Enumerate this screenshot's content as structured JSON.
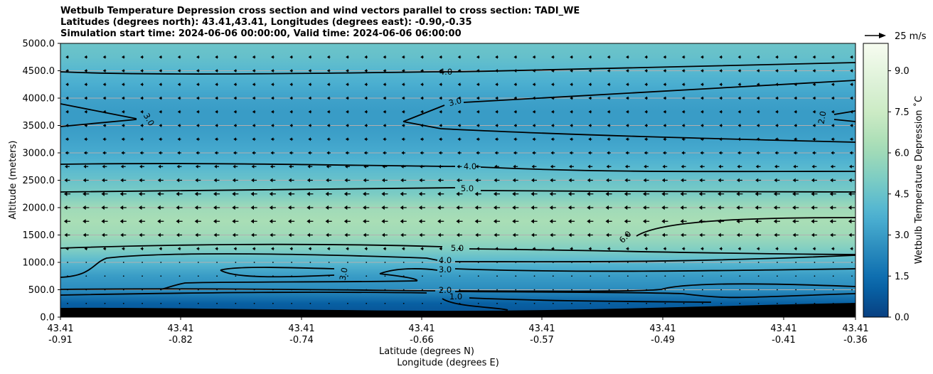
{
  "title_lines": [
    "Wetbulb Temperature Depression cross section and wind vectors parallel to cross section: TADI_WE",
    "Latitudes (degrees north): 43.41,43.41, Longitudes (degrees east): -0.90,-0.35",
    "Simulation start time: 2024-06-06 00:00:00, Valid time: 2024-06-06 06:00:00"
  ],
  "chart_data": {
    "type": "heatmap",
    "ylabel": "Altitude (meters)",
    "xlabel": "Latitude (degrees N)",
    "xlabel2": "Longitude (degrees E)",
    "ylim": [
      0,
      5000
    ],
    "y_ticks": [
      "0.0",
      "500.0",
      "1000.0",
      "1500.0",
      "2000.0",
      "2500.0",
      "3000.0",
      "3500.0",
      "4000.0",
      "4500.0",
      "5000.0"
    ],
    "x_ticks": [
      {
        "lat": "43.41",
        "lon": "-0.91"
      },
      {
        "lat": "43.41",
        "lon": "-0.82"
      },
      {
        "lat": "43.41",
        "lon": "-0.74"
      },
      {
        "lat": "43.41",
        "lon": "-0.66"
      },
      {
        "lat": "43.41",
        "lon": "-0.57"
      },
      {
        "lat": "43.41",
        "lon": "-0.49"
      },
      {
        "lat": "43.41",
        "lon": "-0.41"
      },
      {
        "lat": "43.41",
        "lon": "-0.36"
      }
    ],
    "grid": "horizontal",
    "colorbar": {
      "label": "Wetbulb Temperature Depression ˚C",
      "range": [
        0,
        10
      ],
      "ticks": [
        "0.0",
        "1.5",
        "3.0",
        "4.5",
        "6.0",
        "7.5",
        "9.0"
      ]
    },
    "quiver_key": "25 m/s",
    "contour_labels": [
      "4.0",
      "3.0",
      "3.0",
      "2.0",
      "4.0",
      "5.0",
      "5.0",
      "6.0",
      "4.0",
      "3.0",
      "3.0",
      "2.0",
      "1.0"
    ],
    "profile": [
      {
        "altitude": 0,
        "value": 0.5
      },
      {
        "altitude": 250,
        "value": 1.0
      },
      {
        "altitude": 500,
        "value": 2.5
      },
      {
        "altitude": 750,
        "value": 3.0
      },
      {
        "altitude": 1000,
        "value": 4.0
      },
      {
        "altitude": 1250,
        "value": 5.2
      },
      {
        "altitude": 1500,
        "value": 6.0
      },
      {
        "altitude": 1750,
        "value": 6.3
      },
      {
        "altitude": 2000,
        "value": 6.0
      },
      {
        "altitude": 2250,
        "value": 5.0
      },
      {
        "altitude": 2500,
        "value": 4.5
      },
      {
        "altitude": 2750,
        "value": 4.0
      },
      {
        "altitude": 3000,
        "value": 3.5
      },
      {
        "altitude": 3250,
        "value": 3.2
      },
      {
        "altitude": 3500,
        "value": 3.0
      },
      {
        "altitude": 3750,
        "value": 3.0
      },
      {
        "altitude": 4000,
        "value": 3.2
      },
      {
        "altitude": 4250,
        "value": 3.6
      },
      {
        "altitude": 4500,
        "value": 4.0
      },
      {
        "altitude": 4750,
        "value": 4.4
      },
      {
        "altitude": 5000,
        "value": 4.6
      }
    ],
    "wind_profile": [
      {
        "altitude": 250,
        "u": -0.3
      },
      {
        "altitude": 500,
        "u": -0.5
      },
      {
        "altitude": 750,
        "u": -0.8
      },
      {
        "altitude": 1000,
        "u": -1.2
      },
      {
        "altitude": 1250,
        "u": -3.0
      },
      {
        "altitude": 1500,
        "u": -6.0
      },
      {
        "altitude": 1750,
        "u": -7.0
      },
      {
        "altitude": 2000,
        "u": -7.0
      },
      {
        "altitude": 2250,
        "u": -7.0
      },
      {
        "altitude": 2500,
        "u": -6.0
      },
      {
        "altitude": 2750,
        "u": -5.0
      },
      {
        "altitude": 3000,
        "u": -4.0
      },
      {
        "altitude": 3250,
        "u": -3.5
      },
      {
        "altitude": 3500,
        "u": -3.0
      },
      {
        "altitude": 3750,
        "u": -3.0
      },
      {
        "altitude": 4000,
        "u": -3.0
      },
      {
        "altitude": 4250,
        "u": -3.0
      },
      {
        "altitude": 4500,
        "u": -3.0
      },
      {
        "altitude": 4750,
        "u": -3.0
      }
    ]
  }
}
